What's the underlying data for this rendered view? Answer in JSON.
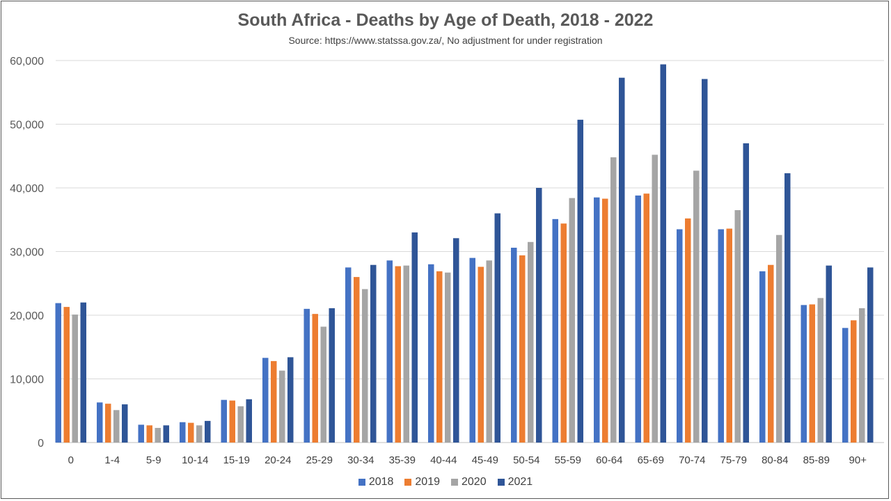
{
  "chart_data": {
    "type": "bar",
    "title": "South Africa - Deaths by Age of Death, 2018 - 2022",
    "subtitle": "Source: https://www.statssa.gov.za/, No adjustment for under registration",
    "xlabel": "",
    "ylabel": "",
    "ylim": [
      0,
      60000
    ],
    "yticks": [
      0,
      10000,
      20000,
      30000,
      40000,
      50000,
      60000
    ],
    "ytick_labels": [
      "0",
      "10,000",
      "20,000",
      "30,000",
      "40,000",
      "50,000",
      "60,000"
    ],
    "grid": true,
    "legend_position": "bottom",
    "categories": [
      "0",
      "1-4",
      "5-9",
      "10-14",
      "15-19",
      "20-24",
      "25-29",
      "30-34",
      "35-39",
      "40-44",
      "45-49",
      "50-54",
      "55-59",
      "60-64",
      "65-69",
      "70-74",
      "75-79",
      "80-84",
      "85-89",
      "90+"
    ],
    "series": [
      {
        "name": "2018",
        "color": "#4472C4",
        "values": [
          21900,
          6300,
          2800,
          3200,
          6700,
          13300,
          21000,
          27500,
          28600,
          28000,
          29000,
          30600,
          35100,
          38500,
          38800,
          33500,
          33500,
          26900,
          21600,
          18000
        ]
      },
      {
        "name": "2019",
        "color": "#ED7D31",
        "values": [
          21300,
          6100,
          2700,
          3100,
          6600,
          12800,
          20200,
          26000,
          27700,
          26900,
          27600,
          29400,
          34400,
          38300,
          39100,
          35200,
          33600,
          27900,
          21700,
          19200
        ]
      },
      {
        "name": "2020",
        "color": "#A5A5A5",
        "values": [
          20100,
          5100,
          2300,
          2700,
          5700,
          11300,
          18200,
          24100,
          27800,
          26700,
          28600,
          31500,
          38400,
          44800,
          45200,
          42700,
          36500,
          32600,
          22700,
          21100
        ]
      },
      {
        "name": "2021",
        "color": "#2F5597",
        "values": [
          22000,
          6000,
          2700,
          3400,
          6800,
          13400,
          21100,
          27900,
          33000,
          32100,
          36000,
          40000,
          50700,
          57300,
          59400,
          57100,
          47000,
          42300,
          27800,
          27500
        ]
      }
    ]
  }
}
